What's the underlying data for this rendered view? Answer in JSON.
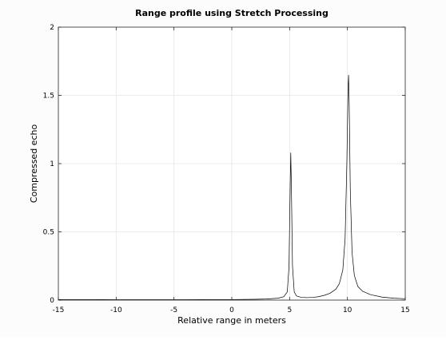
{
  "chart_data": {
    "type": "line",
    "title": "Range profile using Stretch Processing",
    "xlabel": "Relative range in meters",
    "ylabel": "Compressed echo",
    "xlim": [
      -15,
      15
    ],
    "ylim": [
      0,
      2
    ],
    "xticks": [
      -15,
      -10,
      -5,
      0,
      5,
      10,
      15
    ],
    "yticks": [
      0,
      0.5,
      1,
      1.5,
      2
    ],
    "xtick_labels": [
      "-15",
      "-10",
      "-5",
      "0",
      "5",
      "10",
      "15"
    ],
    "ytick_labels": [
      "0",
      "0.5",
      "1",
      "1.5",
      "2"
    ],
    "grid": true,
    "line_color": "#000000",
    "grid_color": "#e6e6e6",
    "peaks": [
      {
        "x": 5.1,
        "y": 1.08
      },
      {
        "x": 10.1,
        "y": 1.65
      }
    ],
    "x": [
      -15,
      -12,
      -10,
      -8,
      -6,
      -4,
      -2,
      0,
      2,
      3,
      4,
      4.5,
      4.8,
      4.95,
      5.05,
      5.1,
      5.15,
      5.25,
      5.4,
      5.6,
      6,
      6.5,
      7,
      7.5,
      8,
      8.5,
      9,
      9.3,
      9.6,
      9.8,
      9.95,
      10.05,
      10.1,
      10.15,
      10.25,
      10.4,
      10.6,
      10.9,
      11.3,
      12,
      13,
      14,
      15
    ],
    "y": [
      0.004,
      0.004,
      0.003,
      0.003,
      0.003,
      0.003,
      0.004,
      0.004,
      0.006,
      0.008,
      0.014,
      0.025,
      0.06,
      0.25,
      0.85,
      1.08,
      0.85,
      0.25,
      0.06,
      0.03,
      0.02,
      0.018,
      0.02,
      0.025,
      0.035,
      0.05,
      0.08,
      0.12,
      0.22,
      0.45,
      1.0,
      1.55,
      1.65,
      1.45,
      0.8,
      0.35,
      0.18,
      0.1,
      0.065,
      0.04,
      0.022,
      0.014,
      0.01
    ]
  }
}
